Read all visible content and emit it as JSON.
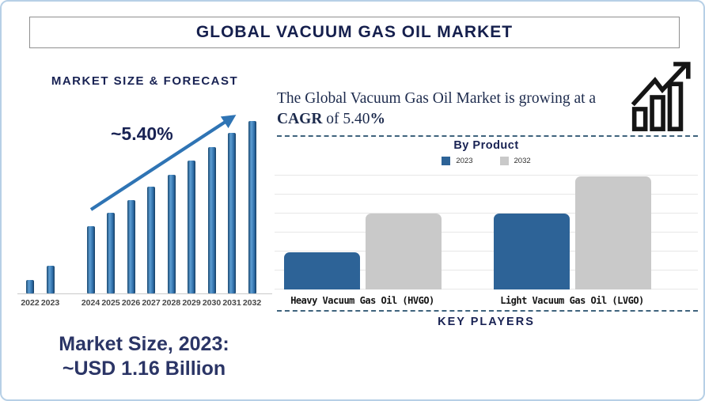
{
  "header": {
    "title": "GLOBAL VACUUM GAS OIL MARKET"
  },
  "left_panel": {
    "heading": "MARKET SIZE & FORECAST",
    "growth_annotation": "~5.40%",
    "market_size_line1": "Market Size, 2023:",
    "market_size_line2": "~USD 1.16 Billion"
  },
  "right_panel": {
    "cagr_segments": [
      {
        "text": "The Global Vacuum Gas Oil Market is growing at a ",
        "bold": false
      },
      {
        "text": "CAGR",
        "bold": true
      },
      {
        "text": " of 5.40",
        "bold": false
      },
      {
        "text": "%",
        "bold": true
      }
    ],
    "growth_icon": "bar-chart-with-rising-arrow-icon",
    "by_product_heading": "By Product",
    "legend": [
      {
        "label": "2023",
        "color": "#2d6397"
      },
      {
        "label": "2032",
        "color": "#c9c9c9"
      }
    ],
    "key_players_heading": "KEY PLAYERS"
  },
  "chart_data": [
    {
      "type": "bar",
      "title": "MARKET SIZE & FORECAST",
      "categories": [
        "2022",
        "2023",
        "2024",
        "2025",
        "2026",
        "2027",
        "2028",
        "2029",
        "2030",
        "2031",
        "2032"
      ],
      "values": [
        8,
        16,
        39,
        47,
        54,
        62,
        69,
        77,
        85,
        93,
        100
      ],
      "unit": "relative bar height, % of 2032 bar (no numeric axis shown in figure)",
      "annotation": "~5.40%",
      "bar_color": "#2e6da4",
      "trend_arrow": true,
      "grid": false,
      "layout_note": "visual gap separates historical bars (2022-2023) from forecast bars (2024-2032)"
    },
    {
      "type": "bar",
      "title": "By Product",
      "categories": [
        "Heavy Vacuum Gas Oil (HVGO)",
        "Light Vacuum Gas Oil (LVGO)"
      ],
      "series": [
        {
          "name": "2023",
          "color": "#2d6397",
          "values": [
            33,
            67
          ]
        },
        {
          "name": "2032",
          "color": "#c9c9c9",
          "values": [
            67,
            100
          ]
        }
      ],
      "unit": "relative bar height, % of tallest bar (no numeric axis shown in figure)",
      "grid": true,
      "legend_position": "top"
    }
  ],
  "colors": {
    "navy_text": "#182253",
    "title_navy": "#151f4d",
    "arrow_blue": "#2f74b4",
    "dashed_line": "#3f637d",
    "page_border": "#b7d0e6",
    "gridline": "#e7e7e7"
  }
}
